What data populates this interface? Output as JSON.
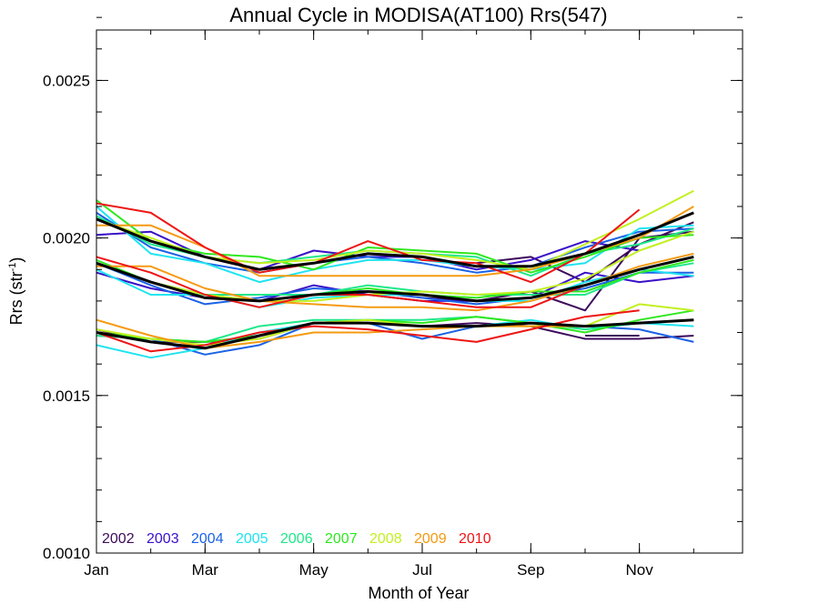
{
  "chart_data": {
    "type": "line",
    "title": "Annual Cycle in MODISA(AT100) Rrs(547)",
    "xlabel": "Month of Year",
    "ylabel": "Rrs (str",
    "ylabel_sup": "-1",
    "ylabel_close": ")",
    "xlim": [
      1,
      12.9
    ],
    "ylim": [
      0.001,
      0.00266
    ],
    "x_ticks": [
      1,
      3,
      5,
      7,
      9,
      11
    ],
    "x_tick_labels": [
      "Jan",
      "Mar",
      "May",
      "Jul",
      "Sep",
      "Nov"
    ],
    "y_ticks": [
      0.001,
      0.0015,
      0.002,
      0.0025
    ],
    "y_tick_labels": [
      "0.0010",
      "0.0015",
      "0.0020",
      "0.0025"
    ],
    "x_minor_step": 1,
    "y_minor_step": 0.0001,
    "grid": false,
    "legend_position": "bottom-left",
    "legend": [
      {
        "name": "2002",
        "color": "#3d0a5c"
      },
      {
        "name": "2003",
        "color": "#3a10c8"
      },
      {
        "name": "2004",
        "color": "#1a62e6"
      },
      {
        "name": "2005",
        "color": "#1ee4f0"
      },
      {
        "name": "2006",
        "color": "#1ee88a"
      },
      {
        "name": "2007",
        "color": "#2ee81e"
      },
      {
        "name": "2008",
        "color": "#c2f020"
      },
      {
        "name": "2009",
        "color": "#f59a10"
      },
      {
        "name": "2010",
        "color": "#ee1414"
      }
    ],
    "series": [
      {
        "color": "#3d0a5c",
        "x": [
          7,
          8,
          9,
          10,
          11,
          12
        ],
        "values": [
          0.00181,
          0.0018,
          0.00183,
          0.00177,
          0.002,
          0.00202
        ]
      },
      {
        "color": "#3d0a5c",
        "x": [
          8,
          9,
          10,
          11,
          12
        ],
        "values": [
          0.00192,
          0.00194,
          0.00186,
          0.00198,
          0.00205
        ]
      },
      {
        "color": "#3d0a5c",
        "x": [
          1,
          2,
          3,
          4,
          5,
          6,
          7,
          8,
          9,
          10,
          11,
          12
        ],
        "values": [
          0.00171,
          0.00167,
          0.00167,
          0.00168,
          0.00173,
          0.00173,
          0.00172,
          0.00173,
          0.00172,
          0.00168,
          0.00168,
          0.00169
        ]
      },
      {
        "color": "#3d0a5c",
        "x": [
          10,
          11
        ],
        "values": [
          0.00169,
          0.00169
        ]
      },
      {
        "color": "#3a10c8",
        "x": [
          1,
          2,
          3,
          4,
          5,
          6,
          7,
          8,
          9,
          10,
          11
        ],
        "values": [
          0.00201,
          0.00202,
          0.00194,
          0.0019,
          0.00196,
          0.00194,
          0.00194,
          0.0019,
          0.00193,
          0.00199,
          0.00196
        ]
      },
      {
        "color": "#3a10c8",
        "x": [
          1,
          2,
          3,
          4,
          5,
          6,
          7,
          8,
          9,
          10,
          11,
          12
        ],
        "values": [
          0.00189,
          0.00184,
          0.00181,
          0.0018,
          0.00185,
          0.00182,
          0.0018,
          0.0018,
          0.00181,
          0.00189,
          0.00186,
          0.00188
        ]
      },
      {
        "color": "#1a62e6",
        "x": [
          1,
          2,
          3,
          4,
          5,
          6,
          7,
          8,
          9,
          10,
          11,
          12
        ],
        "values": [
          0.00208,
          0.00197,
          0.00192,
          0.00189,
          0.00192,
          0.00194,
          0.00192,
          0.00189,
          0.00191,
          0.00197,
          0.00202,
          0.00203
        ]
      },
      {
        "color": "#1a62e6",
        "x": [
          1,
          2,
          3,
          4,
          5,
          6,
          7,
          8,
          9,
          10,
          11,
          12
        ],
        "values": [
          0.00192,
          0.00185,
          0.00179,
          0.00181,
          0.00184,
          0.00183,
          0.00181,
          0.00179,
          0.00181,
          0.00184,
          0.00189,
          0.00189
        ]
      },
      {
        "color": "#1a62e6",
        "x": [
          1,
          2,
          3,
          4,
          5,
          6,
          7,
          8,
          9,
          10,
          11,
          12
        ],
        "values": [
          0.00169,
          0.00168,
          0.00163,
          0.00166,
          0.00173,
          0.00173,
          0.00168,
          0.00172,
          0.00173,
          0.00172,
          0.00171,
          0.00167
        ]
      },
      {
        "color": "#1ee4f0",
        "x": [
          1,
          2,
          3,
          4,
          5,
          6,
          7,
          8,
          9,
          10,
          11,
          12
        ],
        "values": [
          0.0021,
          0.00195,
          0.00192,
          0.00186,
          0.0019,
          0.00193,
          0.00193,
          0.00191,
          0.0019,
          0.00192,
          0.00203,
          0.00204
        ]
      },
      {
        "color": "#1ee4f0",
        "x": [
          1,
          2,
          3,
          4,
          5,
          6,
          7,
          8,
          9,
          10,
          11,
          12
        ],
        "values": [
          0.0019,
          0.00182,
          0.00182,
          0.00178,
          0.00181,
          0.00182,
          0.00182,
          0.0018,
          0.0018,
          0.00186,
          0.0019,
          0.00188
        ]
      },
      {
        "color": "#1ee4f0",
        "x": [
          1,
          2,
          3,
          4,
          5,
          6,
          7,
          8,
          9,
          10,
          11,
          12
        ],
        "values": [
          0.00166,
          0.00162,
          0.00165,
          0.0017,
          0.00173,
          0.00173,
          0.00172,
          0.00172,
          0.00174,
          0.00171,
          0.00173,
          0.00172
        ]
      },
      {
        "color": "#1ee88a",
        "x": [
          1,
          2,
          3,
          4,
          5,
          6,
          7,
          8,
          9,
          10,
          11,
          12
        ],
        "values": [
          0.00207,
          0.00198,
          0.00194,
          0.00192,
          0.00194,
          0.00196,
          0.00195,
          0.00194,
          0.00188,
          0.00195,
          0.00198,
          0.00203
        ]
      },
      {
        "color": "#1ee88a",
        "x": [
          1,
          2,
          3,
          4,
          5,
          6,
          7,
          8,
          9,
          10,
          11,
          12
        ],
        "values": [
          0.00192,
          0.00186,
          0.00182,
          0.00182,
          0.00182,
          0.00185,
          0.00183,
          0.00182,
          0.00182,
          0.00182,
          0.00189,
          0.00192
        ]
      },
      {
        "color": "#1ee88a",
        "x": [
          1,
          2,
          3,
          4,
          5,
          6,
          7,
          8,
          9,
          10,
          11,
          12
        ],
        "values": [
          0.00169,
          0.00168,
          0.00167,
          0.00172,
          0.00174,
          0.00174,
          0.00174,
          0.00175,
          0.00173,
          0.00171,
          0.00173,
          0.00174
        ]
      },
      {
        "color": "#2ee81e",
        "x": [
          1,
          2,
          3,
          4,
          5,
          6,
          7,
          8,
          9,
          10,
          11,
          12
        ],
        "values": [
          0.00212,
          0.00199,
          0.00195,
          0.00194,
          0.0019,
          0.00197,
          0.00196,
          0.00195,
          0.00189,
          0.00194,
          0.002,
          0.00201
        ]
      },
      {
        "color": "#2ee81e",
        "x": [
          1,
          2,
          3,
          4,
          5,
          6,
          7,
          8,
          9,
          10,
          11,
          12
        ],
        "values": [
          0.00193,
          0.00186,
          0.00182,
          0.0018,
          0.00182,
          0.00184,
          0.00182,
          0.00181,
          0.00183,
          0.00183,
          0.00189,
          0.00193
        ]
      },
      {
        "color": "#2ee81e",
        "x": [
          1,
          2,
          3,
          4,
          5,
          6,
          7,
          8,
          9,
          10,
          11,
          12
        ],
        "values": [
          0.0017,
          0.00168,
          0.00167,
          0.00169,
          0.00173,
          0.00174,
          0.00173,
          0.00175,
          0.00173,
          0.0017,
          0.00174,
          0.00177
        ]
      },
      {
        "color": "#c2f020",
        "x": [
          1,
          2,
          3,
          4,
          5,
          6,
          7,
          8,
          9,
          10,
          11,
          12
        ],
        "values": [
          0.00206,
          0.002,
          0.00194,
          0.00192,
          0.00193,
          0.00196,
          0.00195,
          0.00193,
          0.0019,
          0.00198,
          0.00206,
          0.00215
        ]
      },
      {
        "color": "#c2f020",
        "x": [
          1,
          2,
          3,
          4,
          5,
          6,
          7,
          8,
          9,
          10,
          11,
          12
        ],
        "values": [
          0.00192,
          0.00186,
          0.00182,
          0.0018,
          0.0018,
          0.00182,
          0.00183,
          0.00182,
          0.00183,
          0.00187,
          0.00196,
          0.00202
        ]
      },
      {
        "color": "#c2f020",
        "x": [
          1,
          2,
          3,
          4,
          5,
          6,
          7,
          8,
          9,
          10,
          11,
          12
        ],
        "values": [
          0.00171,
          0.00168,
          0.00166,
          0.00168,
          0.00173,
          0.00174,
          0.00172,
          0.00172,
          0.00172,
          0.00172,
          0.00179,
          0.00177
        ]
      },
      {
        "color": "#f59a10",
        "x": [
          1,
          2,
          3,
          4,
          5,
          6,
          7,
          8,
          9,
          10,
          11,
          12
        ],
        "values": [
          0.00204,
          0.00204,
          0.00197,
          0.00188,
          0.00188,
          0.00188,
          0.00188,
          0.00188,
          0.0019,
          0.00195,
          0.002,
          0.0021
        ]
      },
      {
        "color": "#f59a10",
        "x": [
          1,
          2,
          3,
          4,
          5,
          6,
          7,
          8,
          9,
          10,
          11,
          12
        ],
        "values": [
          0.00191,
          0.00191,
          0.00184,
          0.0018,
          0.00179,
          0.00178,
          0.00178,
          0.00177,
          0.0018,
          0.00185,
          0.00191,
          0.00195
        ]
      },
      {
        "color": "#f59a10",
        "x": [
          1,
          2,
          3,
          4,
          5,
          6,
          7,
          8,
          9,
          10,
          11,
          12
        ],
        "values": [
          0.00174,
          0.00169,
          0.00165,
          0.00167,
          0.0017,
          0.0017,
          0.00171,
          0.00172,
          0.00172,
          0.00172,
          0.00173,
          0.00174
        ]
      },
      {
        "color": "#ee1414",
        "x": [
          1,
          2,
          3,
          4,
          5,
          6,
          7,
          8,
          9,
          10,
          11
        ],
        "values": [
          0.00211,
          0.00208,
          0.00197,
          0.00189,
          0.00192,
          0.00199,
          0.00193,
          0.00192,
          0.00186,
          0.00195,
          0.00209
        ]
      },
      {
        "color": "#ee1414",
        "x": [
          1,
          2,
          3,
          4,
          5,
          6,
          7,
          8,
          9,
          10,
          11
        ],
        "values": [
          0.00194,
          0.00189,
          0.00182,
          0.00178,
          0.00182,
          0.00182,
          0.0018,
          0.00178,
          0.00178,
          0.00185,
          0.0019
        ]
      },
      {
        "color": "#ee1414",
        "x": [
          1,
          2,
          3,
          4,
          5,
          6,
          7,
          8,
          9,
          10,
          11
        ],
        "values": [
          0.0017,
          0.00164,
          0.00166,
          0.0017,
          0.00172,
          0.00171,
          0.00169,
          0.00167,
          0.00171,
          0.00175,
          0.00177
        ]
      },
      {
        "color": "#000000",
        "width": 3,
        "x": [
          1,
          2,
          3,
          4,
          5,
          6,
          7,
          8,
          9,
          10,
          11,
          12
        ],
        "values": [
          0.00206,
          0.00199,
          0.00194,
          0.0019,
          0.00192,
          0.00195,
          0.00194,
          0.00191,
          0.00191,
          0.00195,
          0.00201,
          0.00208
        ]
      },
      {
        "color": "#000000",
        "width": 3,
        "x": [
          1,
          2,
          3,
          4,
          5,
          6,
          7,
          8,
          9,
          10,
          11,
          12
        ],
        "values": [
          0.00192,
          0.00186,
          0.00181,
          0.0018,
          0.00182,
          0.00183,
          0.00182,
          0.0018,
          0.00181,
          0.00185,
          0.0019,
          0.00194
        ]
      },
      {
        "color": "#000000",
        "width": 3,
        "x": [
          1,
          2,
          3,
          4,
          5,
          6,
          7,
          8,
          9,
          10,
          11,
          12
        ],
        "values": [
          0.0017,
          0.00167,
          0.00165,
          0.00169,
          0.00173,
          0.00173,
          0.00172,
          0.00172,
          0.00173,
          0.00172,
          0.00173,
          0.00174
        ]
      }
    ]
  }
}
